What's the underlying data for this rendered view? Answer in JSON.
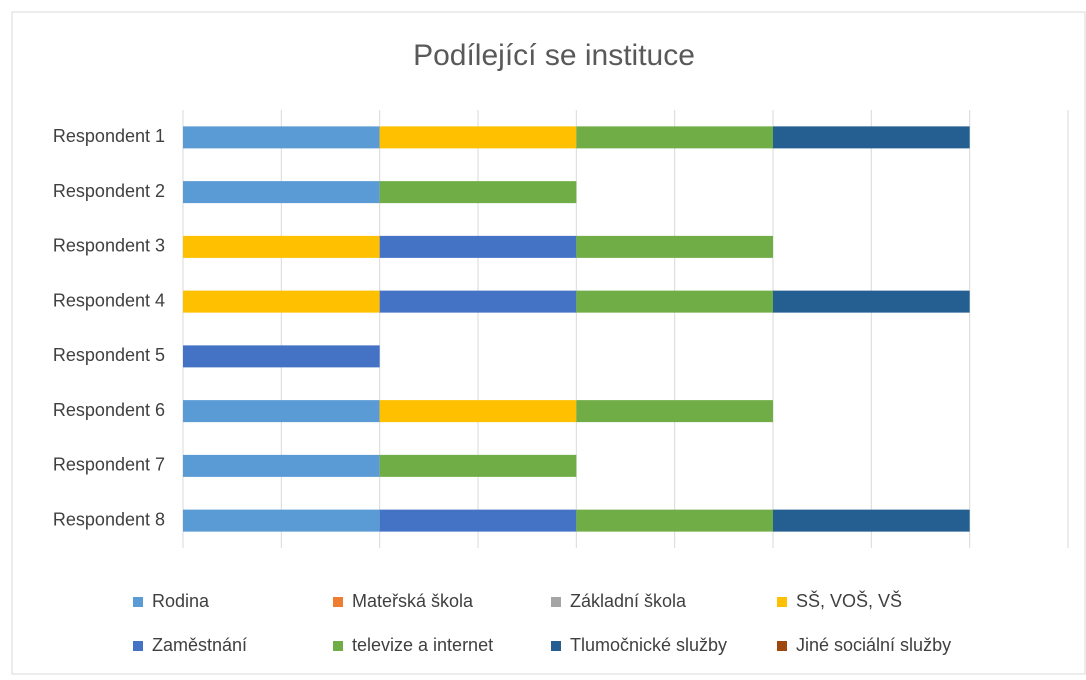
{
  "chart_data": {
    "type": "stacked-bar-horizontal",
    "title": "Podílející se instituce",
    "categories": [
      "Respondent 1",
      "Respondent 2",
      "Respondent 3",
      "Respondent 4",
      "Respondent 5",
      "Respondent 6",
      "Respondent 7",
      "Respondent 8"
    ],
    "series": [
      {
        "name": "Rodina",
        "color": "#5b9bd5",
        "values": [
          1,
          1,
          0,
          0,
          0,
          1,
          1,
          1
        ]
      },
      {
        "name": "Mateřská škola",
        "color": "#ed7d31",
        "values": [
          0,
          0,
          0,
          0,
          0,
          0,
          0,
          0
        ]
      },
      {
        "name": "Základní škola",
        "color": "#a5a5a5",
        "values": [
          0,
          0,
          0,
          0,
          0,
          0,
          0,
          0
        ]
      },
      {
        "name": "SŠ, VOŠ, VŠ",
        "color": "#ffc000",
        "values": [
          1,
          0,
          1,
          1,
          0,
          1,
          0,
          0
        ]
      },
      {
        "name": "Zaměstnání",
        "color": "#4472c4",
        "values": [
          0,
          0,
          1,
          1,
          1,
          0,
          0,
          1
        ]
      },
      {
        "name": "televize a internet",
        "color": "#70ad47",
        "values": [
          1,
          1,
          1,
          1,
          0,
          1,
          1,
          1
        ]
      },
      {
        "name": "Tlumočnické služby",
        "color": "#255e91",
        "values": [
          1,
          0,
          0,
          1,
          0,
          0,
          0,
          1
        ]
      },
      {
        "name": "Jiné sociální služby",
        "color": "#9e480e",
        "values": [
          0,
          0,
          0,
          0,
          0,
          0,
          0,
          0
        ]
      }
    ],
    "xlim": [
      0,
      4.5
    ],
    "xticks": [
      0,
      0.5,
      1,
      1.5,
      2,
      2.5,
      3,
      3.5,
      4,
      4.5
    ],
    "grid": true,
    "legend": "bottom"
  }
}
